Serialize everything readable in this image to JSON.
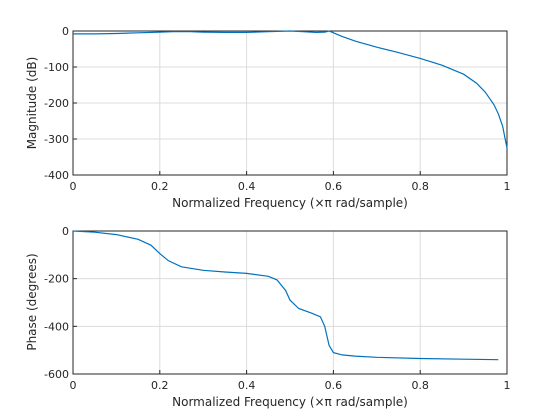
{
  "chart_data": [
    {
      "type": "line",
      "xlabel": "Normalized Frequency  (×π rad/sample)",
      "ylabel": "Magnitude (dB)",
      "xlim": [
        0,
        1
      ],
      "ylim": [
        -400,
        0
      ],
      "xticks": [
        "0",
        "0.2",
        "0.4",
        "0.6",
        "0.8",
        "1"
      ],
      "yticks": [
        "0",
        "-100",
        "-200",
        "-300",
        "-400"
      ],
      "grid": true,
      "color": "#0072bd",
      "series": [
        {
          "x": [
            0,
            0.05,
            0.1,
            0.15,
            0.2,
            0.23,
            0.27,
            0.3,
            0.35,
            0.4,
            0.45,
            0.5,
            0.53,
            0.56,
            0.58,
            0.59,
            0.6,
            0.62,
            0.65,
            0.7,
            0.75,
            0.8,
            0.85,
            0.9,
            0.93,
            0.95,
            0.97,
            0.98,
            0.99,
            0.995,
            1.0
          ],
          "y": [
            -8,
            -8,
            -7,
            -5,
            -3,
            -2,
            -2,
            -3,
            -4,
            -4,
            -2,
            0,
            -2,
            -4,
            -3,
            0,
            -5,
            -15,
            -28,
            -45,
            -60,
            -76,
            -95,
            -120,
            -145,
            -170,
            -205,
            -230,
            -265,
            -295,
            -325
          ]
        }
      ]
    },
    {
      "type": "line",
      "xlabel": "Normalized Frequency  (×π rad/sample)",
      "ylabel": "Phase (degrees)",
      "xlim": [
        0,
        1
      ],
      "ylim": [
        -600,
        0
      ],
      "xticks": [
        "0",
        "0.2",
        "0.4",
        "0.6",
        "0.8",
        "1"
      ],
      "yticks": [
        "0",
        "-200",
        "-400",
        "-600"
      ],
      "grid": true,
      "color": "#0072bd",
      "series": [
        {
          "x": [
            0,
            0.05,
            0.1,
            0.15,
            0.18,
            0.2,
            0.22,
            0.25,
            0.3,
            0.35,
            0.4,
            0.45,
            0.47,
            0.49,
            0.5,
            0.52,
            0.55,
            0.57,
            0.58,
            0.59,
            0.6,
            0.62,
            0.65,
            0.7,
            0.8,
            0.9,
            0.98
          ],
          "y": [
            0,
            -5,
            -15,
            -35,
            -60,
            -95,
            -125,
            -150,
            -165,
            -172,
            -178,
            -190,
            -205,
            -250,
            -290,
            -325,
            -345,
            -360,
            -400,
            -480,
            -510,
            -520,
            -525,
            -530,
            -535,
            -538,
            -540
          ]
        }
      ]
    }
  ]
}
